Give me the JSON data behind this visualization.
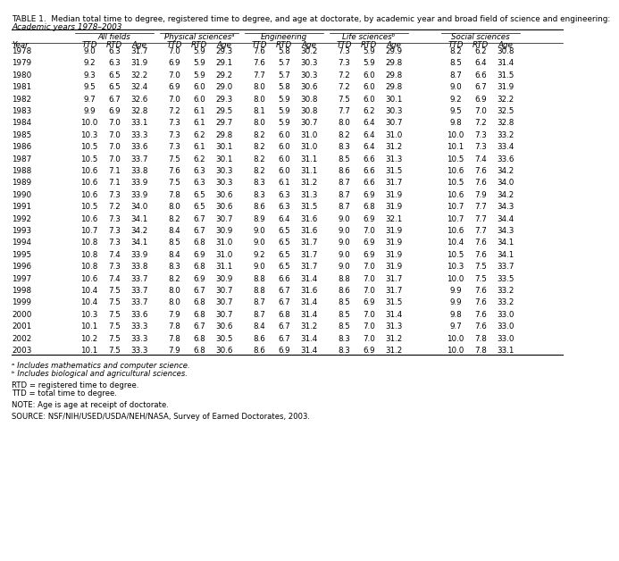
{
  "title": "TABLE 1.  Median total time to degree, registered time to degree, and age at doctorate, by academic year and broad field of science and engineering:",
  "subtitle": "Academic years 1978–2003",
  "field_names": [
    "All fields",
    "Physical sciencesᵃ",
    "Engineering",
    "Life sciencesᵇ",
    "Social sciences"
  ],
  "subfields": [
    "TTD",
    "RTD",
    "Age"
  ],
  "rows": [
    [
      1978,
      9.0,
      6.3,
      31.7,
      7.0,
      5.9,
      29.3,
      7.6,
      5.8,
      30.2,
      7.3,
      5.9,
      29.9,
      8.2,
      6.2,
      30.8
    ],
    [
      1979,
      9.2,
      6.3,
      31.9,
      6.9,
      5.9,
      29.1,
      7.6,
      5.7,
      30.3,
      7.3,
      5.9,
      29.8,
      8.5,
      6.4,
      31.4
    ],
    [
      1980,
      9.3,
      6.5,
      32.2,
      7.0,
      5.9,
      29.2,
      7.7,
      5.7,
      30.3,
      7.2,
      6.0,
      29.8,
      8.7,
      6.6,
      31.5
    ],
    [
      1981,
      9.5,
      6.5,
      32.4,
      6.9,
      6.0,
      29.0,
      8.0,
      5.8,
      30.6,
      7.2,
      6.0,
      29.8,
      9.0,
      6.7,
      31.9
    ],
    [
      1982,
      9.7,
      6.7,
      32.6,
      7.0,
      6.0,
      29.3,
      8.0,
      5.9,
      30.8,
      7.5,
      6.0,
      30.1,
      9.2,
      6.9,
      32.2
    ],
    [
      1983,
      9.9,
      6.9,
      32.8,
      7.2,
      6.1,
      29.5,
      8.1,
      5.9,
      30.8,
      7.7,
      6.2,
      30.3,
      9.5,
      7.0,
      32.5
    ],
    [
      1984,
      10.0,
      7.0,
      33.1,
      7.3,
      6.1,
      29.7,
      8.0,
      5.9,
      30.7,
      8.0,
      6.4,
      30.7,
      9.8,
      7.2,
      32.8
    ],
    [
      1985,
      10.3,
      7.0,
      33.3,
      7.3,
      6.2,
      29.8,
      8.2,
      6.0,
      31.0,
      8.2,
      6.4,
      31.0,
      10.0,
      7.3,
      33.2
    ],
    [
      1986,
      10.5,
      7.0,
      33.6,
      7.3,
      6.1,
      30.1,
      8.2,
      6.0,
      31.0,
      8.3,
      6.4,
      31.2,
      10.1,
      7.3,
      33.4
    ],
    [
      1987,
      10.5,
      7.0,
      33.7,
      7.5,
      6.2,
      30.1,
      8.2,
      6.0,
      31.1,
      8.5,
      6.6,
      31.3,
      10.5,
      7.4,
      33.6
    ],
    [
      1988,
      10.6,
      7.1,
      33.8,
      7.6,
      6.3,
      30.3,
      8.2,
      6.0,
      31.1,
      8.6,
      6.6,
      31.5,
      10.6,
      7.6,
      34.2
    ],
    [
      1989,
      10.6,
      7.1,
      33.9,
      7.5,
      6.3,
      30.3,
      8.3,
      6.1,
      31.2,
      8.7,
      6.6,
      31.7,
      10.5,
      7.6,
      34.0
    ],
    [
      1990,
      10.6,
      7.3,
      33.9,
      7.8,
      6.5,
      30.6,
      8.3,
      6.3,
      31.3,
      8.7,
      6.9,
      31.9,
      10.6,
      7.9,
      34.2
    ],
    [
      1991,
      10.5,
      7.2,
      34.0,
      8.0,
      6.5,
      30.6,
      8.6,
      6.3,
      31.5,
      8.7,
      6.8,
      31.9,
      10.7,
      7.7,
      34.3
    ],
    [
      1992,
      10.6,
      7.3,
      34.1,
      8.2,
      6.7,
      30.7,
      8.9,
      6.4,
      31.6,
      9.0,
      6.9,
      32.1,
      10.7,
      7.7,
      34.4
    ],
    [
      1993,
      10.7,
      7.3,
      34.2,
      8.4,
      6.7,
      30.9,
      9.0,
      6.5,
      31.6,
      9.0,
      7.0,
      31.9,
      10.6,
      7.7,
      34.3
    ],
    [
      1994,
      10.8,
      7.3,
      34.1,
      8.5,
      6.8,
      31.0,
      9.0,
      6.5,
      31.7,
      9.0,
      6.9,
      31.9,
      10.4,
      7.6,
      34.1
    ],
    [
      1995,
      10.8,
      7.4,
      33.9,
      8.4,
      6.9,
      31.0,
      9.2,
      6.5,
      31.7,
      9.0,
      6.9,
      31.9,
      10.5,
      7.6,
      34.1
    ],
    [
      1996,
      10.8,
      7.3,
      33.8,
      8.3,
      6.8,
      31.1,
      9.0,
      6.5,
      31.7,
      9.0,
      7.0,
      31.9,
      10.3,
      7.5,
      33.7
    ],
    [
      1997,
      10.6,
      7.4,
      33.7,
      8.2,
      6.9,
      30.9,
      8.8,
      6.6,
      31.4,
      8.8,
      7.0,
      31.7,
      10.0,
      7.5,
      33.5
    ],
    [
      1998,
      10.4,
      7.5,
      33.7,
      8.0,
      6.7,
      30.7,
      8.8,
      6.7,
      31.6,
      8.6,
      7.0,
      31.7,
      9.9,
      7.6,
      33.2
    ],
    [
      1999,
      10.4,
      7.5,
      33.7,
      8.0,
      6.8,
      30.7,
      8.7,
      6.7,
      31.4,
      8.5,
      6.9,
      31.5,
      9.9,
      7.6,
      33.2
    ],
    [
      2000,
      10.3,
      7.5,
      33.6,
      7.9,
      6.8,
      30.7,
      8.7,
      6.8,
      31.4,
      8.5,
      7.0,
      31.4,
      9.8,
      7.6,
      33.0
    ],
    [
      2001,
      10.1,
      7.5,
      33.3,
      7.8,
      6.7,
      30.6,
      8.4,
      6.7,
      31.2,
      8.5,
      7.0,
      31.3,
      9.7,
      7.6,
      33.0
    ],
    [
      2002,
      10.2,
      7.5,
      33.3,
      7.8,
      6.8,
      30.5,
      8.6,
      6.7,
      31.4,
      8.3,
      7.0,
      31.2,
      10.0,
      7.8,
      33.0
    ],
    [
      2003,
      10.1,
      7.5,
      33.3,
      7.9,
      6.8,
      30.6,
      8.6,
      6.9,
      31.4,
      8.3,
      6.9,
      31.2,
      10.0,
      7.8,
      33.1
    ]
  ],
  "footnote_a": "ᵃ Includes mathematics and computer science.",
  "footnote_b": "ᵇ Includes biological and agricultural sciences.",
  "footnote_rtd": "RTD = registered time to degree.",
  "footnote_ttd": "TTD = total time to degree.",
  "footnote_note": "NOTE: Age is age at receipt of doctorate.",
  "footnote_source": "SOURCE: NSF/NIH/USED/USDA/NEH/NASA, Survey of Earned Doctorates, 2003."
}
